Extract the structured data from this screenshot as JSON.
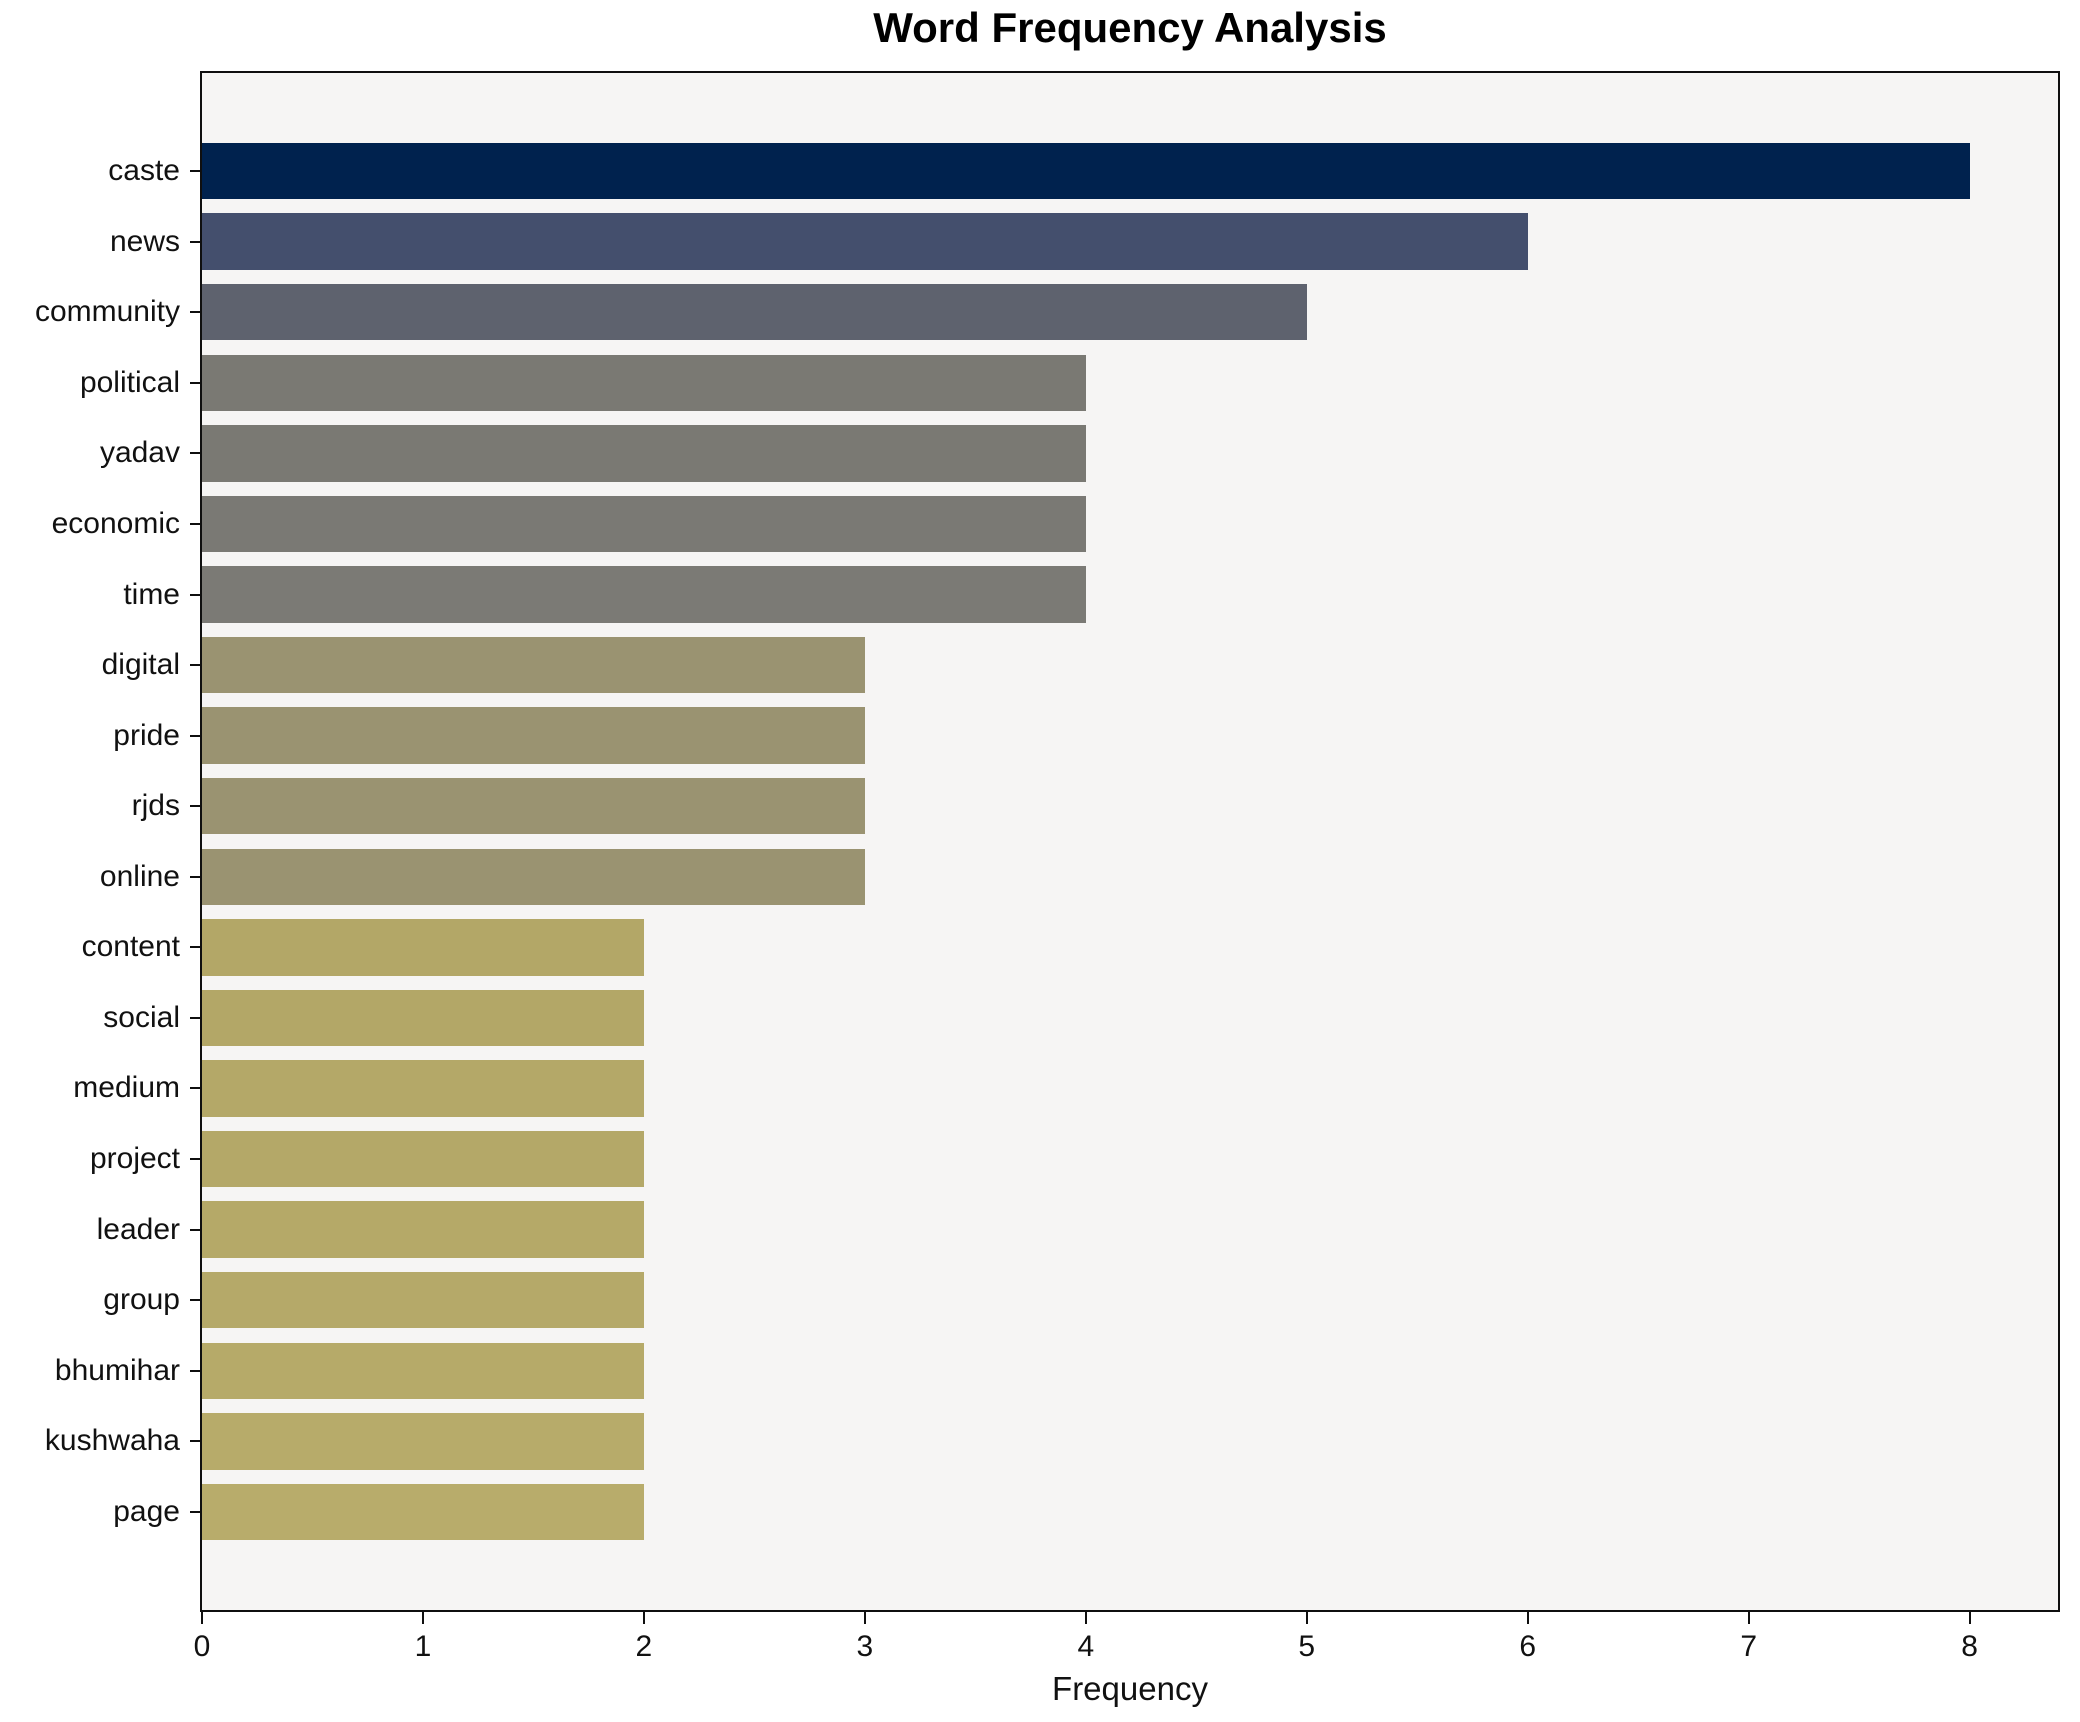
{
  "title": "Word Frequency Analysis",
  "chart_data": {
    "type": "bar",
    "orientation": "horizontal",
    "title": "Word Frequency Analysis",
    "xlabel": "Frequency",
    "ylabel": "",
    "grid": false,
    "legend": "none",
    "xlim": [
      0,
      8.4
    ],
    "xticks": [
      0,
      1,
      2,
      3,
      4,
      5,
      6,
      7,
      8
    ],
    "categories": [
      "caste",
      "news",
      "community",
      "political",
      "yadav",
      "economic",
      "time",
      "digital",
      "pride",
      "rjds",
      "online",
      "content",
      "social",
      "medium",
      "project",
      "leader",
      "group",
      "bhumihar",
      "kushwaha",
      "page"
    ],
    "values": [
      8,
      6,
      5,
      4,
      4,
      4,
      4,
      3,
      3,
      3,
      3,
      2,
      2,
      2,
      2,
      2,
      2,
      2,
      2,
      2
    ],
    "bar_colors": [
      "#00224e",
      "#444f6d",
      "#5e626e",
      "#7a7973",
      "#7a7973",
      "#7a7974",
      "#7b7a75",
      "#9a9371",
      "#9a9371",
      "#9a9371",
      "#9a9371",
      "#b3a767",
      "#b3a767",
      "#b4a868",
      "#b4a868",
      "#b5a968",
      "#b5a969",
      "#b6aa69",
      "#b7ab6a",
      "#b8ac6b"
    ],
    "plot_background": "#f6f5f4",
    "figure_background": "#ffffff",
    "spine_color": "#0f0f0f",
    "bar_height_fraction": 0.8
  }
}
